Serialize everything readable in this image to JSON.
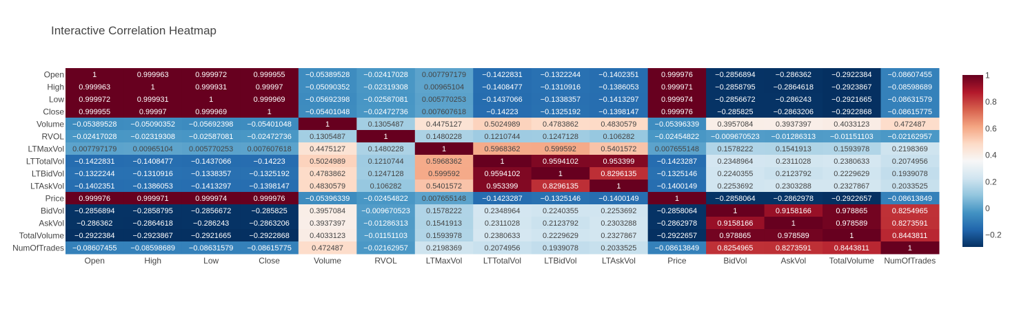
{
  "chart_data": {
    "type": "heatmap",
    "title": "Interactive Correlation Heatmap",
    "x_labels": [
      "Open",
      "High",
      "Low",
      "Close",
      "Volume",
      "RVOL",
      "LTMaxVol",
      "LTTotalVol",
      "LTBidVol",
      "LTAskVol",
      "Price",
      "BidVol",
      "AskVol",
      "TotalVolume",
      "NumOfTrades"
    ],
    "y_labels": [
      "Open",
      "High",
      "Low",
      "Close",
      "Volume",
      "RVOL",
      "LTMaxVol",
      "LTTotalVol",
      "LTBidVol",
      "LTAskVol",
      "Price",
      "BidVol",
      "AskVol",
      "TotalVolume",
      "NumOfTrades"
    ],
    "z": [
      [
        1,
        0.999963,
        0.999972,
        0.999955,
        -0.05389528,
        -0.02417028,
        0.007797179,
        -0.1422831,
        -0.1322244,
        -0.1402351,
        0.999976,
        -0.2856894,
        -0.286362,
        -0.2922384,
        -0.08607455
      ],
      [
        0.999963,
        1,
        0.999931,
        0.99997,
        -0.05090352,
        -0.02319308,
        0.00965104,
        -0.1408477,
        -0.1310916,
        -0.1386053,
        0.999971,
        -0.2858795,
        -0.2864618,
        -0.2923867,
        -0.08598689
      ],
      [
        0.999972,
        0.999931,
        1,
        0.999969,
        -0.05692398,
        -0.02587081,
        0.005770253,
        -0.1437066,
        -0.1338357,
        -0.1413297,
        0.999974,
        -0.2856672,
        -0.286243,
        -0.2921665,
        -0.08631579
      ],
      [
        0.999955,
        0.99997,
        0.999969,
        1,
        -0.05401048,
        -0.02472736,
        0.007607618,
        -0.14223,
        -0.1325192,
        -0.1398147,
        0.999976,
        -0.285825,
        -0.2863206,
        -0.2922868,
        -0.08615775
      ],
      [
        -0.05389528,
        -0.05090352,
        -0.05692398,
        -0.05401048,
        1,
        0.1305487,
        0.4475127,
        0.5024989,
        0.4783862,
        0.4830579,
        -0.05396339,
        0.3957084,
        0.3937397,
        0.4033123,
        0.472487
      ],
      [
        -0.02417028,
        -0.02319308,
        -0.02587081,
        -0.02472736,
        0.1305487,
        1,
        0.1480228,
        0.1210744,
        0.1247128,
        0.106282,
        -0.02454822,
        -0.009670523,
        -0.01286313,
        -0.01151103,
        -0.02162957
      ],
      [
        0.007797179,
        0.00965104,
        0.005770253,
        0.007607618,
        0.4475127,
        0.1480228,
        1,
        0.5968362,
        0.599592,
        0.5401572,
        0.007655148,
        0.1578222,
        0.1541913,
        0.1593978,
        0.2198369
      ],
      [
        -0.1422831,
        -0.1408477,
        -0.1437066,
        -0.14223,
        0.5024989,
        0.1210744,
        0.5968362,
        1,
        0.9594102,
        0.953399,
        -0.1423287,
        0.2348964,
        0.2311028,
        0.2380633,
        0.2074956
      ],
      [
        -0.1322244,
        -0.1310916,
        -0.1338357,
        -0.1325192,
        0.4783862,
        0.1247128,
        0.599592,
        0.9594102,
        1,
        0.8296135,
        -0.1325146,
        0.2240355,
        0.2123792,
        0.2229629,
        0.1939078
      ],
      [
        -0.1402351,
        -0.1386053,
        -0.1413297,
        -0.1398147,
        0.4830579,
        0.106282,
        0.5401572,
        0.953399,
        0.8296135,
        1,
        -0.1400149,
        0.2253692,
        0.2303288,
        0.2327867,
        0.2033525
      ],
      [
        0.999976,
        0.999971,
        0.999974,
        0.999976,
        -0.05396339,
        -0.02454822,
        0.007655148,
        -0.1423287,
        -0.1325146,
        -0.1400149,
        1,
        -0.2858064,
        -0.2862978,
        -0.2922657,
        -0.08613849
      ],
      [
        -0.2856894,
        -0.2858795,
        -0.2856672,
        -0.285825,
        0.3957084,
        -0.009670523,
        0.1578222,
        0.2348964,
        0.2240355,
        0.2253692,
        -0.2858064,
        1,
        0.9158166,
        0.978865,
        0.8254965
      ],
      [
        -0.286362,
        -0.2864618,
        -0.286243,
        -0.2863206,
        0.3937397,
        -0.01286313,
        0.1541913,
        0.2311028,
        0.2123792,
        0.2303288,
        -0.2862978,
        0.9158166,
        1,
        0.978589,
        0.8273591
      ],
      [
        -0.2922384,
        -0.2923867,
        -0.2921665,
        -0.2922868,
        0.4033123,
        -0.01151103,
        0.1593978,
        0.2380633,
        0.2229629,
        0.2327867,
        -0.2922657,
        0.978865,
        0.978589,
        1,
        0.8443811
      ],
      [
        -0.08607455,
        -0.08598689,
        -0.08631579,
        -0.08615775,
        0.472487,
        -0.02162957,
        0.2198369,
        0.2074956,
        0.1939078,
        0.2033525,
        -0.08613849,
        0.8254965,
        0.8273591,
        0.8443811,
        1
      ]
    ],
    "z_labels": [
      [
        "1",
        "0.999963",
        "0.999972",
        "0.999955",
        "−0.05389528",
        "−0.02417028",
        "0.007797179",
        "−0.1422831",
        "−0.1322244",
        "−0.1402351",
        "0.999976",
        "−0.2856894",
        "−0.286362",
        "−0.2922384",
        "−0.08607455"
      ],
      [
        "0.999963",
        "1",
        "0.999931",
        "0.99997",
        "−0.05090352",
        "−0.02319308",
        "0.00965104",
        "−0.1408477",
        "−0.1310916",
        "−0.1386053",
        "0.999971",
        "−0.2858795",
        "−0.2864618",
        "−0.2923867",
        "−0.08598689"
      ],
      [
        "0.999972",
        "0.999931",
        "1",
        "0.999969",
        "−0.05692398",
        "−0.02587081",
        "0.005770253",
        "−0.1437066",
        "−0.1338357",
        "−0.1413297",
        "0.999974",
        "−0.2856672",
        "−0.286243",
        "−0.2921665",
        "−0.08631579"
      ],
      [
        "0.999955",
        "0.99997",
        "0.999969",
        "1",
        "−0.05401048",
        "−0.02472736",
        "0.007607618",
        "−0.14223",
        "−0.1325192",
        "−0.1398147",
        "0.999976",
        "−0.285825",
        "−0.2863206",
        "−0.2922868",
        "−0.08615775"
      ],
      [
        "−0.05389528",
        "−0.05090352",
        "−0.05692398",
        "−0.05401048",
        "1",
        "0.1305487",
        "0.4475127",
        "0.5024989",
        "0.4783862",
        "0.4830579",
        "−0.05396339",
        "0.3957084",
        "0.3937397",
        "0.4033123",
        "0.472487"
      ],
      [
        "−0.02417028",
        "−0.02319308",
        "−0.02587081",
        "−0.02472736",
        "0.1305487",
        "1",
        "0.1480228",
        "0.1210744",
        "0.1247128",
        "0.106282",
        "−0.02454822",
        "−0.009670523",
        "−0.01286313",
        "−0.01151103",
        "−0.02162957"
      ],
      [
        "0.007797179",
        "0.00965104",
        "0.005770253",
        "0.007607618",
        "0.4475127",
        "0.1480228",
        "1",
        "0.5968362",
        "0.599592",
        "0.5401572",
        "0.007655148",
        "0.1578222",
        "0.1541913",
        "0.1593978",
        "0.2198369"
      ],
      [
        "−0.1422831",
        "−0.1408477",
        "−0.1437066",
        "−0.14223",
        "0.5024989",
        "0.1210744",
        "0.5968362",
        "1",
        "0.9594102",
        "0.953399",
        "−0.1423287",
        "0.2348964",
        "0.2311028",
        "0.2380633",
        "0.2074956"
      ],
      [
        "−0.1322244",
        "−0.1310916",
        "−0.1338357",
        "−0.1325192",
        "0.4783862",
        "0.1247128",
        "0.599592",
        "0.9594102",
        "1",
        "0.8296135",
        "−0.1325146",
        "0.2240355",
        "0.2123792",
        "0.2229629",
        "0.1939078"
      ],
      [
        "−0.1402351",
        "−0.1386053",
        "−0.1413297",
        "−0.1398147",
        "0.4830579",
        "0.106282",
        "0.5401572",
        "0.953399",
        "0.8296135",
        "1",
        "−0.1400149",
        "0.2253692",
        "0.2303288",
        "0.2327867",
        "0.2033525"
      ],
      [
        "0.999976",
        "0.999971",
        "0.999974",
        "0.999976",
        "−0.05396339",
        "−0.02454822",
        "0.007655148",
        "−0.1423287",
        "−0.1325146",
        "−0.1400149",
        "1",
        "−0.2858064",
        "−0.2862978",
        "−0.2922657",
        "−0.08613849"
      ],
      [
        "−0.2856894",
        "−0.2858795",
        "−0.2856672",
        "−0.285825",
        "0.3957084",
        "−0.009670523",
        "0.1578222",
        "0.2348964",
        "0.2240355",
        "0.2253692",
        "−0.2858064",
        "1",
        "0.9158166",
        "0.978865",
        "0.8254965"
      ],
      [
        "−0.286362",
        "−0.2864618",
        "−0.286243",
        "−0.2863206",
        "0.3937397",
        "−0.01286313",
        "0.1541913",
        "0.2311028",
        "0.2123792",
        "0.2303288",
        "−0.2862978",
        "0.9158166",
        "1",
        "0.978589",
        "0.8273591"
      ],
      [
        "−0.2922384",
        "−0.2923867",
        "−0.2921665",
        "−0.2922868",
        "0.4033123",
        "−0.01151103",
        "0.1593978",
        "0.2380633",
        "0.2229629",
        "0.2327867",
        "−0.2922657",
        "0.978865",
        "0.978589",
        "1",
        "0.8443811"
      ],
      [
        "−0.08607455",
        "−0.08598689",
        "−0.08631579",
        "−0.08615775",
        "0.472487",
        "−0.02162957",
        "0.2198369",
        "0.2074956",
        "0.1939078",
        "0.2033525",
        "−0.08613849",
        "0.8254965",
        "0.8273591",
        "0.8443811",
        "1"
      ]
    ],
    "zmin": -0.2923867,
    "zmax": 1,
    "colorscale_name": "RdBu (reversed)",
    "colorscale": [
      [
        0.0,
        "#053061"
      ],
      [
        0.1,
        "#2166ac"
      ],
      [
        0.2,
        "#4393c3"
      ],
      [
        0.3,
        "#92c5de"
      ],
      [
        0.4,
        "#d1e5f0"
      ],
      [
        0.5,
        "#f7f7f7"
      ],
      [
        0.6,
        "#fddbc7"
      ],
      [
        0.7,
        "#f4a582"
      ],
      [
        0.8,
        "#d6604d"
      ],
      [
        0.9,
        "#b2182b"
      ],
      [
        1.0,
        "#67001f"
      ]
    ],
    "colorbar_ticks": [
      1,
      0.8,
      0.6,
      0.4,
      0.2,
      0,
      -0.2
    ],
    "colorbar_tick_labels": [
      "1",
      "0.8",
      "0.6",
      "0.4",
      "0.2",
      "0",
      "−0.2"
    ],
    "grid": false,
    "legend": "colorbar-right"
  },
  "colors": {
    "title": "#444444",
    "tick_text": "#444444",
    "background": "#ffffff"
  }
}
